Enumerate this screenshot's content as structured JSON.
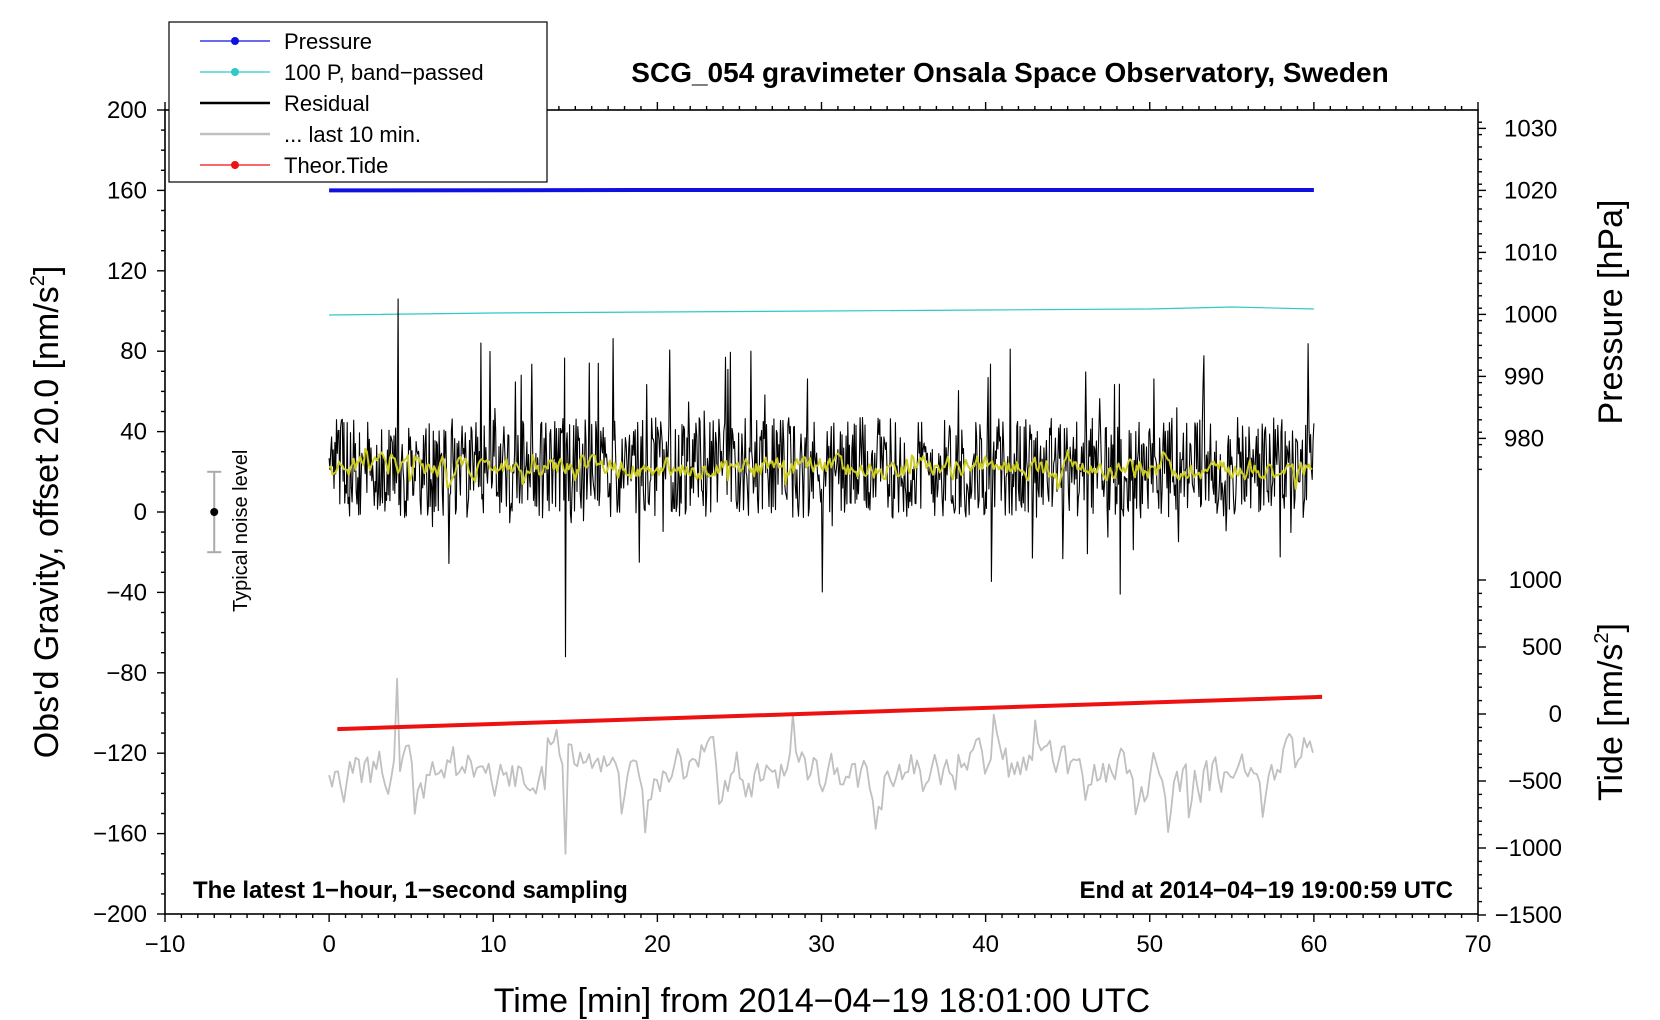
{
  "chart_data": {
    "type": "line",
    "title": "SCG_054 gravimeter Onsala Space Observatory, Sweden",
    "xlabel": "Time [min] from 2014−04−19 18:01:00 UTC",
    "ylabel_left": "Obs'd Gravity, offset 20.0 [nm/s",
    "ylabel_left_sup": "2",
    "ylabel_left_end": "]",
    "ylabel_right_pressure": "Pressure [hPa]",
    "ylabel_right_tide": "Tide [nm/s",
    "ylabel_right_tide_sup": "2",
    "ylabel_right_tide_end": "]",
    "xlim": [
      -10,
      70
    ],
    "ylim": [
      -200,
      200
    ],
    "x_ticks": [
      "−10",
      "0",
      "10",
      "20",
      "30",
      "40",
      "50",
      "60",
      "70"
    ],
    "y_ticks": [
      "200",
      "160",
      "120",
      "80",
      "40",
      "0",
      "−40",
      "−80",
      "−120",
      "−160",
      "−200"
    ],
    "pressure_axis": {
      "ticks": [
        "1030",
        "1020",
        "1010",
        "1000",
        "990",
        "980"
      ],
      "values": [
        1030,
        1020,
        1010,
        1000,
        990,
        980
      ]
    },
    "tide_axis": {
      "ticks": [
        "1000",
        "500",
        "0",
        "−500",
        "−1000",
        "−1500"
      ],
      "values": [
        1000,
        500,
        0,
        -500,
        -1000,
        -1500
      ]
    },
    "legend": [
      {
        "label": "Pressure",
        "color": "#1010e0",
        "marker": true
      },
      {
        "label": "100 P, band−passed",
        "color": "#30c8c8",
        "marker": true
      },
      {
        "label": "Residual",
        "color": "#000000",
        "marker": false
      },
      {
        "label": "... last 10 min.",
        "color": "#c0c0c0",
        "marker": false
      },
      {
        "label": "Theor.Tide",
        "color": "#ee1111",
        "marker": true
      }
    ],
    "series": [
      {
        "name": "Pressure",
        "color": "#1010e0",
        "x": [
          0,
          22,
          60
        ],
        "y": [
          160,
          160.2,
          160.2
        ]
      },
      {
        "name": "100 P, band−passed",
        "color": "#30c8c8",
        "x": [
          0,
          10,
          20,
          30,
          40,
          50,
          55,
          60
        ],
        "y": [
          98,
          99,
          99.5,
          100,
          100.5,
          101,
          102,
          101
        ]
      },
      {
        "name": "Residual",
        "color": "#000000",
        "x_range": [
          0,
          60
        ],
        "center": 22,
        "typical_amplitude": 25,
        "extremes": {
          "max": 106,
          "min": -72
        }
      },
      {
        "name": "Residual smoothed",
        "color": "#cccc22",
        "x_range": [
          0,
          60
        ],
        "center": 22,
        "typical_amplitude": 10
      },
      {
        "name": "... last 10 min.",
        "color": "#c0c0c0",
        "x_range": [
          0,
          60
        ],
        "center": -130,
        "typical_amplitude": 25,
        "extremes": {
          "max": -83,
          "min": -170
        }
      },
      {
        "name": "Theor.Tide",
        "color": "#ee1111",
        "x": [
          0.5,
          60.5
        ],
        "y": [
          -108,
          -92
        ]
      }
    ],
    "noise_bar": {
      "label": "Typical noise level",
      "x": -7,
      "center": 0,
      "low": -20,
      "high": 20
    },
    "annotations": {
      "bottom_left": "The latest 1−hour, 1−second sampling",
      "bottom_right": "End at 2014−04−19 19:00:59 UTC"
    }
  }
}
